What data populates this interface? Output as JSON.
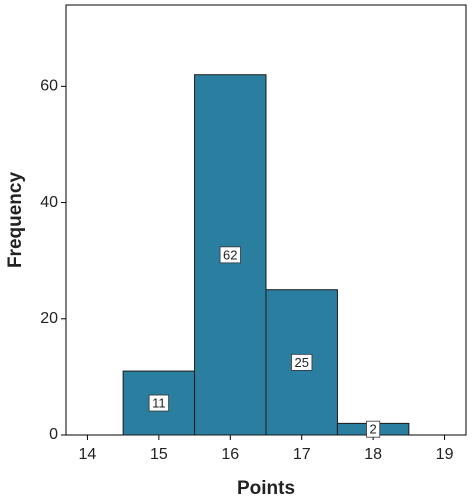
{
  "chart_data": {
    "type": "histogram",
    "bins": [
      14.5,
      15.5,
      16.5,
      17.5,
      18.5
    ],
    "values": [
      11,
      62,
      25,
      2
    ],
    "color": "#2a7fa0",
    "xlabel": "Points",
    "ylabel": "Frequency",
    "xlim": [
      13.7,
      19.3
    ],
    "xticks": [
      14,
      15,
      16,
      17,
      18,
      19
    ],
    "ylim": [
      0,
      74
    ],
    "yticks": [
      0,
      20,
      40,
      60
    ]
  }
}
